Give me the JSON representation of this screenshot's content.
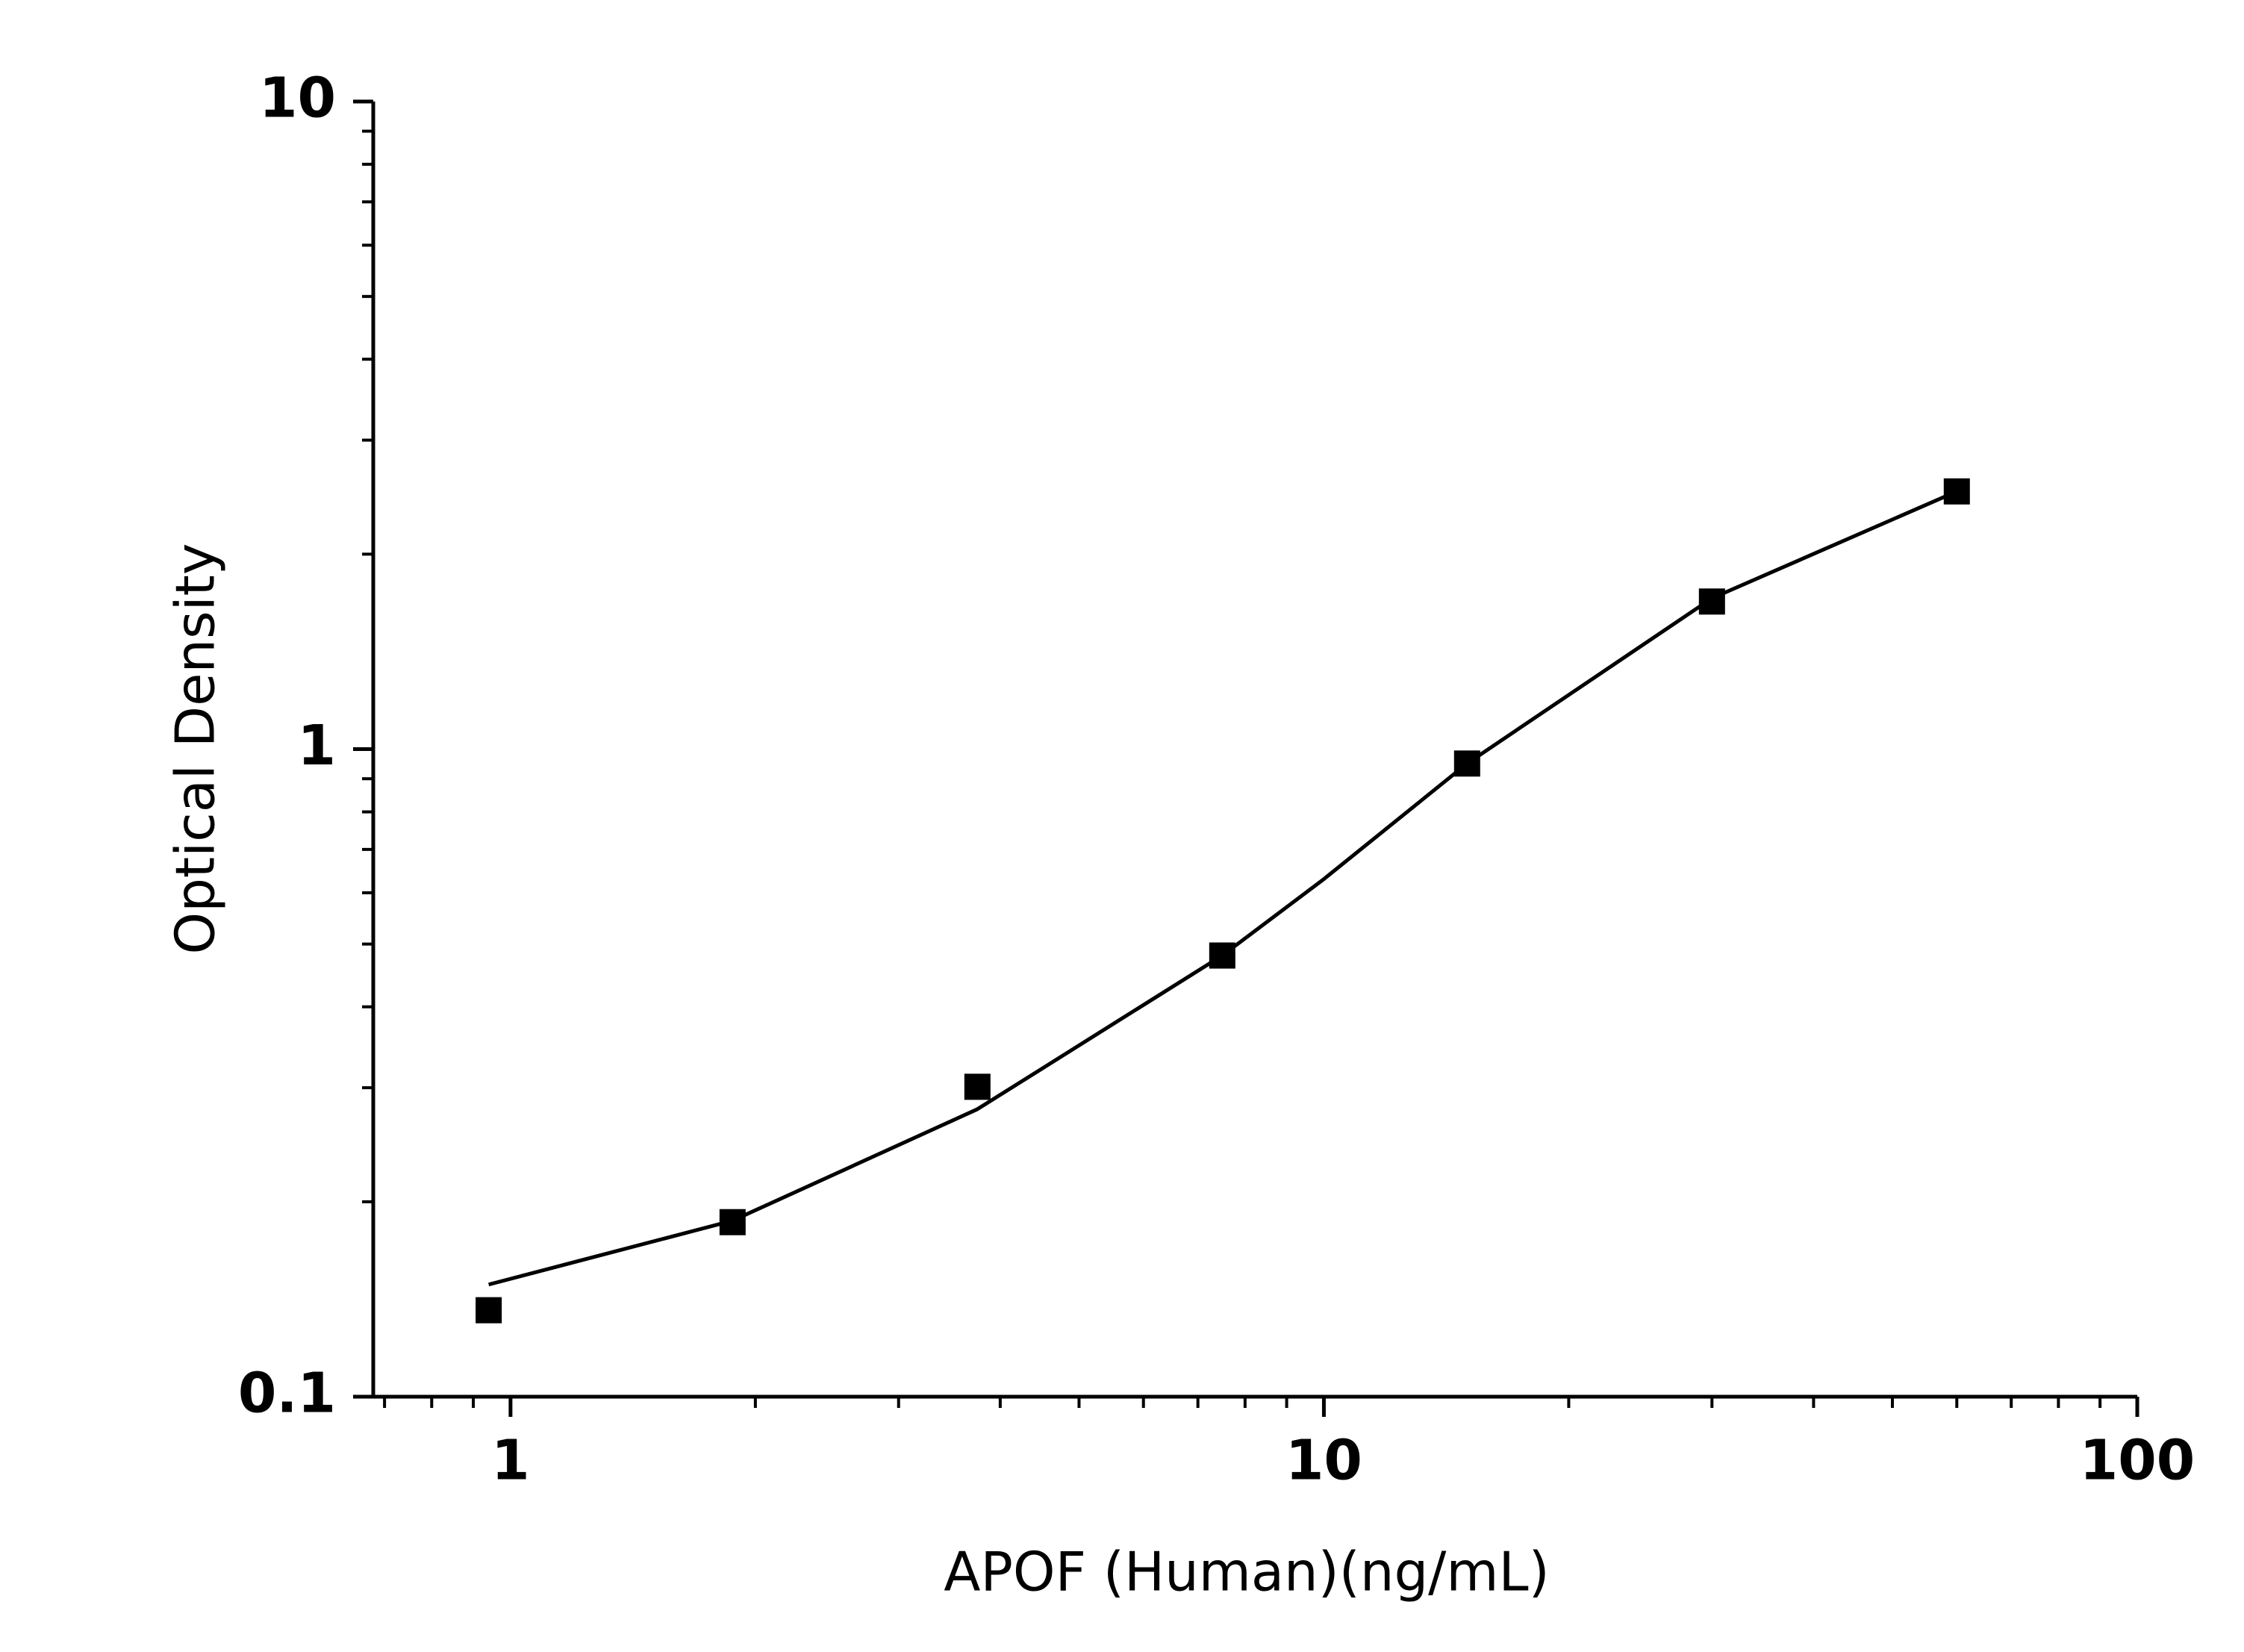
{
  "chart_data": {
    "type": "scatter",
    "x_label": "APOF (Human)(ng/mL)",
    "y_label": "Optical Density",
    "xscale": "log",
    "yscale": "log",
    "xlim": [
      0.678,
      100
    ],
    "ylim": [
      0.1,
      10
    ],
    "xticks": [
      1,
      10,
      100
    ],
    "yticks": [
      0.1,
      1,
      10
    ],
    "xminorticks": [
      0.7,
      0.8,
      0.9,
      2,
      3,
      4,
      5,
      6,
      7,
      8,
      9,
      20,
      30,
      40,
      50,
      60,
      70,
      80,
      90
    ],
    "yminorticks": [
      0.2,
      0.3,
      0.4,
      0.5,
      0.6,
      0.7,
      0.8,
      0.9,
      2,
      3,
      4,
      5,
      6,
      7,
      8,
      9
    ],
    "series": [
      {
        "mode": "line",
        "color": "#000000",
        "x": [
          0.94,
          1.875,
          3.75,
          7.5,
          10,
          15,
          30,
          60
        ],
        "values": [
          0.149,
          0.187,
          0.278,
          0.48,
          0.63,
          0.95,
          1.71,
          2.5
        ]
      },
      {
        "mode": "markers",
        "color": "#000000",
        "x": [
          0.94,
          1.875,
          3.75,
          7.5,
          15,
          30,
          60
        ],
        "values": [
          0.136,
          0.186,
          0.301,
          0.48,
          0.95,
          1.69,
          2.5
        ]
      }
    ]
  }
}
